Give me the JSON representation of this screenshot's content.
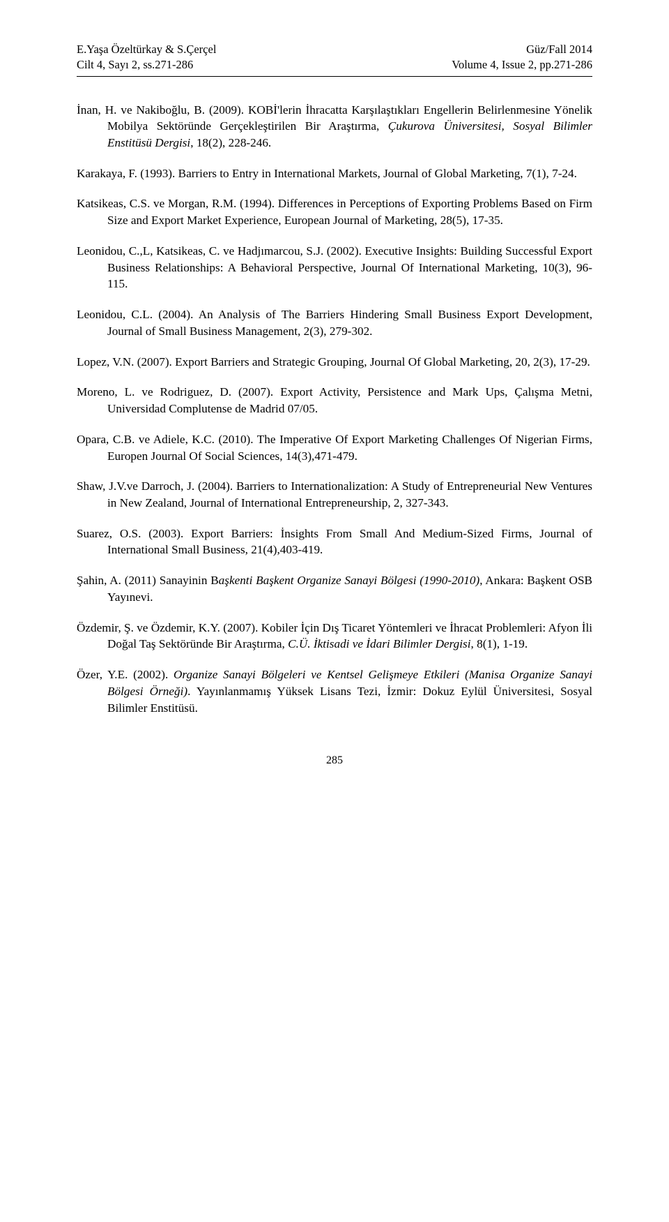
{
  "header": {
    "left_line1": "E.Yaşa Özeltürkay & S.Çerçel",
    "left_line2": "Cilt 4, Sayı 2, ss.271-286",
    "right_line1": "Güz/Fall 2014",
    "right_line2": "Volume 4, Issue 2, pp.271-286"
  },
  "refs": {
    "r1a": "İnan, H. ve Nakiboğlu, B. (2009). KOBİ'lerin İhracatta Karşılaştıkları Engellerin Belirlenmesine Yönelik Mobilya Sektöründe Gerçekleştirilen Bir Araştırma, ",
    "r1i": "Çukurova Üniversitesi, Sosyal Bilimler Enstitüsü Dergisi",
    "r1b": ", 18(2), 228-246.",
    "r2a": "Karakaya, F. (1993). Barriers to Entry in International Markets, Journal of Global Marketing, 7(1), 7-24.",
    "r3a": "Katsikeas, C.S. ve Morgan, R.M. (1994). Differences in Perceptions of Exporting Problems Based on Firm Size and Export Market Experience, European Journal of Marketing, 28(5), 17-35.",
    "r4a": "Leonidou, C.,L, Katsikeas, C. ve Hadjımarcou, S.J. (2002). Executive Insights: Building Successful Export Business Relationships: A Behavioral Perspective, Journal Of International Marketing,  10(3), 96-115.",
    "r5a": "Leonidou, C.L. (2004). An Analysis of The Barriers Hindering Small Business Export Development, Journal of Small Business Management, 2(3), 279-302.",
    "r6a": "Lopez, V.N. (2007). Export Barriers and Strategic Grouping, Journal Of Global Marketing, 20, 2(3), 17-29.",
    "r7a": "Moreno, L. ve Rodriguez, D. (2007). Export Activity, Persistence and Mark Ups, Çalışma Metni, Universidad Complutense de Madrid 07/05.",
    "r8a": "Opara, C.B. ve Adiele, K.C. (2010). The Imperative Of Export Marketing Challenges Of Nigerian Firms, Europen Journal Of Social Sciences, 14(3),471-479.",
    "r9a": "Shaw, J.V.ve Darroch, J. (2004). Barriers to Internationalization: A Study of Entrepreneurial New Ventures in New Zealand, Journal of International Entrepreneurship, 2, 327-343.",
    "r10a": "Suarez, O.S. (2003). Export Barriers: İnsights From Small And Medium-Sized Firms, Journal of International Small Business, 21(4),403-419.",
    "r11a": "Şahin, A. (2011) Sanayinin B",
    "r11i": "aşkenti Başkent Organize Sanayi Bölgesi (1990-2010)",
    "r11b": ", Ankara: Başkent OSB Yayınevi.",
    "r12a": "Özdemir, Ş. ve Özdemir, K.Y. (2007). Kobiler İçin Dış Ticaret Yöntemleri ve İhracat Problemleri: Afyon İli Doğal Taş Sektöründe Bir Araştırma, ",
    "r12i": "C.Ü. İktisadi ve İdari Bilimler Dergisi",
    "r12b": ", 8(1), 1-19.",
    "r13a": "Özer, Y.E. (2002). ",
    "r13i": "Organize Sanayi Bölgeleri ve Kentsel Gelişmeye Etkileri (Manisa Organize Sanayi Bölgesi Örneği)",
    "r13b": ". Yayınlanmamış Yüksek Lisans Tezi, İzmir: Dokuz Eylül Üniversitesi, Sosyal Bilimler Enstitüsü."
  },
  "page_number": "285"
}
